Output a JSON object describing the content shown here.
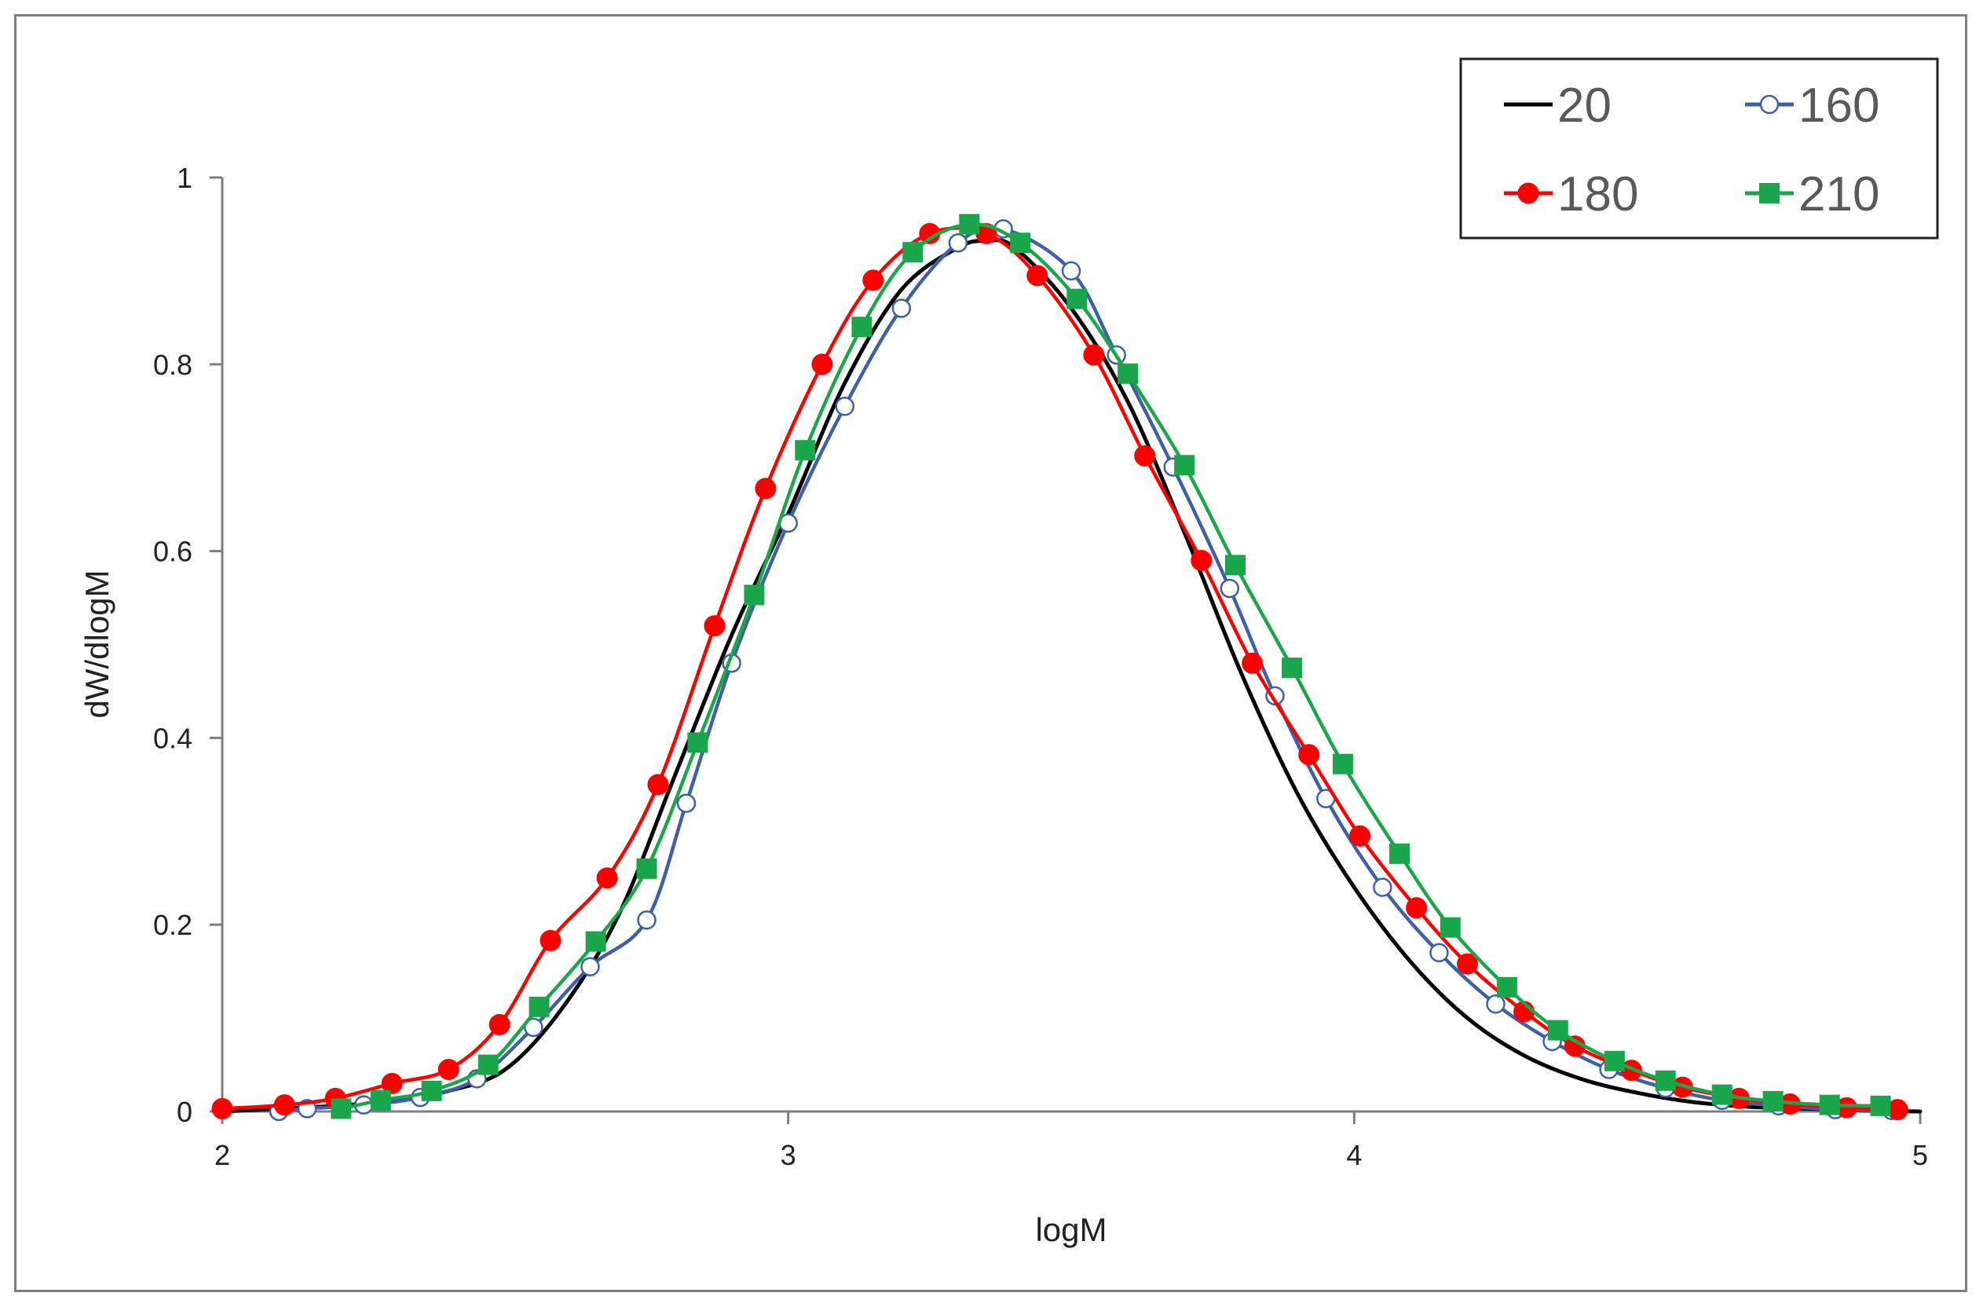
{
  "chart_data": {
    "type": "line",
    "title": "",
    "xlabel": "logM",
    "ylabel": "dW/dlogM",
    "xlim": [
      2,
      5
    ],
    "ylim": [
      0,
      1
    ],
    "x_ticks": [
      "2",
      "3",
      "4",
      "5"
    ],
    "y_ticks": [
      "0",
      "0.2",
      "0.4",
      "0.6",
      "0.8",
      "1"
    ],
    "grid": false,
    "legend_position": "top-right",
    "series": [
      {
        "name": "20",
        "color": "#000000",
        "marker": "none",
        "x": [
          2.0,
          2.1,
          2.2,
          2.3,
          2.4,
          2.5,
          2.6,
          2.7,
          2.8,
          2.9,
          3.0,
          3.1,
          3.2,
          3.3,
          3.35,
          3.4,
          3.5,
          3.6,
          3.7,
          3.8,
          3.9,
          4.0,
          4.1,
          4.2,
          4.3,
          4.4,
          4.5,
          4.6,
          4.7,
          4.8,
          4.9,
          5.0
        ],
        "y": [
          0.0,
          0.003,
          0.006,
          0.012,
          0.022,
          0.045,
          0.11,
          0.21,
          0.36,
          0.51,
          0.64,
          0.78,
          0.88,
          0.925,
          0.932,
          0.925,
          0.86,
          0.76,
          0.62,
          0.47,
          0.34,
          0.24,
          0.16,
          0.1,
          0.06,
          0.035,
          0.02,
          0.01,
          0.005,
          0.003,
          0.001,
          0.0
        ]
      },
      {
        "name": "160",
        "color": "#3f60a8",
        "marker": "open-circle",
        "x": [
          2.1,
          2.15,
          2.25,
          2.35,
          2.45,
          2.55,
          2.65,
          2.75,
          2.82,
          2.9,
          3.0,
          3.1,
          3.2,
          3.3,
          3.38,
          3.5,
          3.58,
          3.68,
          3.78,
          3.86,
          3.95,
          4.05,
          4.15,
          4.25,
          4.35,
          4.45,
          4.55,
          4.65,
          4.75,
          4.85,
          4.95
        ],
        "y": [
          0.0,
          0.003,
          0.007,
          0.015,
          0.035,
          0.09,
          0.155,
          0.205,
          0.33,
          0.48,
          0.63,
          0.755,
          0.86,
          0.93,
          0.945,
          0.9,
          0.81,
          0.69,
          0.56,
          0.445,
          0.335,
          0.24,
          0.17,
          0.115,
          0.075,
          0.045,
          0.025,
          0.012,
          0.006,
          0.002,
          0.001
        ]
      },
      {
        "name": "180",
        "color": "#ff0000",
        "marker": "filled-circle",
        "x": [
          2.0,
          2.11,
          2.2,
          2.3,
          2.4,
          2.49,
          2.58,
          2.68,
          2.77,
          2.87,
          2.96,
          3.06,
          3.15,
          3.25,
          3.35,
          3.44,
          3.54,
          3.63,
          3.73,
          3.82,
          3.92,
          4.01,
          4.11,
          4.2,
          4.3,
          4.39,
          4.49,
          4.58,
          4.68,
          4.77,
          4.87,
          4.96
        ],
        "y": [
          0.003,
          0.007,
          0.014,
          0.03,
          0.045,
          0.093,
          0.183,
          0.25,
          0.35,
          0.52,
          0.667,
          0.8,
          0.89,
          0.94,
          0.94,
          0.895,
          0.81,
          0.702,
          0.59,
          0.48,
          0.382,
          0.295,
          0.218,
          0.158,
          0.107,
          0.07,
          0.044,
          0.026,
          0.014,
          0.008,
          0.004,
          0.002
        ]
      },
      {
        "name": "210",
        "color": "#1aa64a",
        "marker": "filled-square",
        "x": [
          2.21,
          2.28,
          2.37,
          2.47,
          2.56,
          2.66,
          2.75,
          2.84,
          2.94,
          3.03,
          3.13,
          3.22,
          3.32,
          3.41,
          3.51,
          3.6,
          3.7,
          3.79,
          3.89,
          3.98,
          4.08,
          4.17,
          4.27,
          4.36,
          4.46,
          4.55,
          4.65,
          4.74,
          4.84,
          4.93
        ],
        "y": [
          0.003,
          0.012,
          0.022,
          0.05,
          0.112,
          0.182,
          0.26,
          0.395,
          0.553,
          0.708,
          0.84,
          0.92,
          0.95,
          0.93,
          0.87,
          0.79,
          0.692,
          0.585,
          0.475,
          0.372,
          0.276,
          0.197,
          0.133,
          0.087,
          0.054,
          0.033,
          0.018,
          0.011,
          0.007,
          0.006
        ]
      }
    ]
  }
}
